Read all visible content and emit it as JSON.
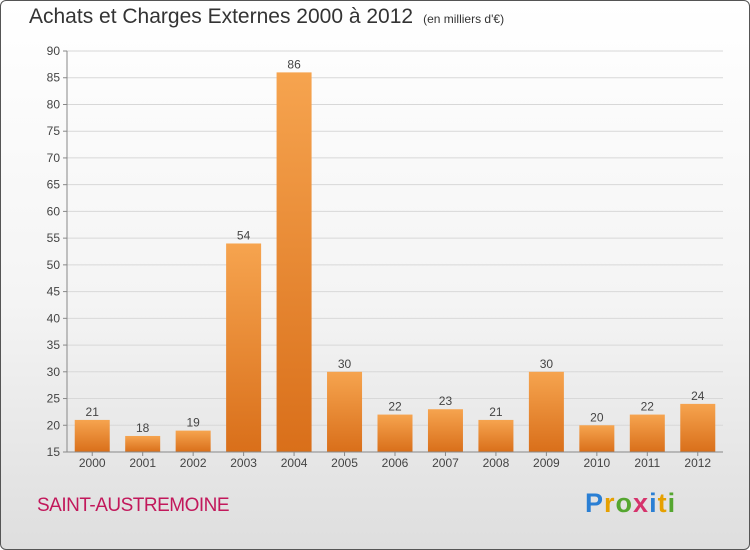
{
  "title": "Achats et Charges Externes 2000 à 2012",
  "subtitle": "(en milliers d'€)",
  "commune": "SAINT-AUSTREMOINE",
  "logo": {
    "letters": [
      "P",
      "r",
      "o",
      "x",
      "i",
      "t",
      "i"
    ],
    "colors": [
      "#2a7fd4",
      "#e6a000",
      "#55a630",
      "#d6336c",
      "#2a7fd4",
      "#e6a000",
      "#55a630"
    ]
  },
  "colors": {
    "bar_top": "#f6a44f",
    "bar_bottom": "#d96f1a",
    "grid": "#d8d8d8",
    "axis": "#888888"
  },
  "chart_data": {
    "type": "bar",
    "categories": [
      "2000",
      "2001",
      "2002",
      "2003",
      "2004",
      "2005",
      "2006",
      "2007",
      "2008",
      "2009",
      "2010",
      "2011",
      "2012"
    ],
    "values": [
      21,
      18,
      19,
      54,
      86,
      30,
      22,
      23,
      21,
      30,
      20,
      22,
      24
    ],
    "ylim": [
      15,
      90
    ],
    "yticks": [
      15,
      20,
      25,
      30,
      35,
      40,
      45,
      50,
      55,
      60,
      65,
      70,
      75,
      80,
      85,
      90
    ],
    "grid": true
  }
}
